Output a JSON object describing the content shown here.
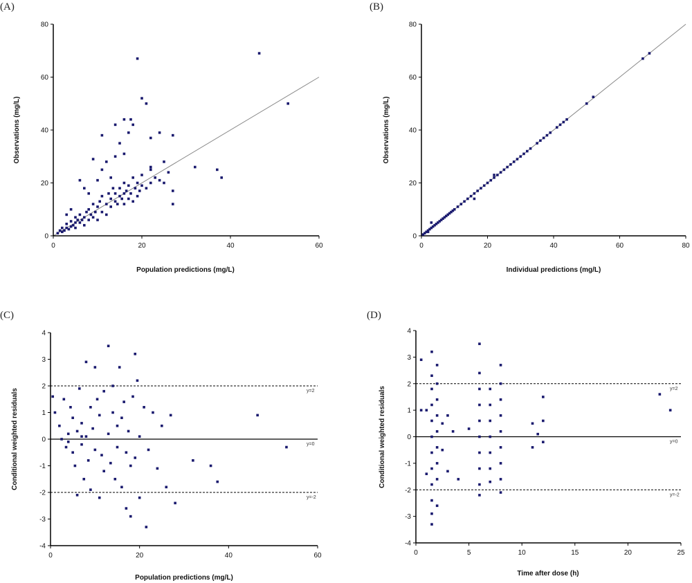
{
  "figure": {
    "point_color": "#1a1a6e",
    "line_color": "#888888",
    "axis_color": "#000000"
  },
  "chart_data": [
    {
      "id": "A",
      "panel_label": "(A)",
      "type": "scatter",
      "xlabel": "Population predictions (mg/L)",
      "ylabel": "Observations (mg/L)",
      "xlim": [
        0,
        60
      ],
      "ylim": [
        0,
        80
      ],
      "xticks": [
        0,
        20,
        40,
        60
      ],
      "yticks": [
        0,
        20,
        40,
        60,
        80
      ],
      "identity_line": true,
      "points": [
        [
          1,
          1
        ],
        [
          1.5,
          2
        ],
        [
          2,
          1.5
        ],
        [
          2,
          3
        ],
        [
          2.5,
          2
        ],
        [
          3,
          3
        ],
        [
          3,
          4.5
        ],
        [
          3.5,
          2.5
        ],
        [
          4,
          3.5
        ],
        [
          4,
          5.5
        ],
        [
          4.5,
          4
        ],
        [
          5,
          5
        ],
        [
          5,
          7
        ],
        [
          5,
          3
        ],
        [
          5.5,
          6
        ],
        [
          6,
          5
        ],
        [
          6,
          8
        ],
        [
          6.5,
          6
        ],
        [
          7,
          7
        ],
        [
          7,
          4
        ],
        [
          7.5,
          9
        ],
        [
          8,
          6
        ],
        [
          8,
          10
        ],
        [
          8.5,
          8
        ],
        [
          9,
          7
        ],
        [
          9,
          12
        ],
        [
          9.5,
          9
        ],
        [
          10,
          11
        ],
        [
          10,
          6
        ],
        [
          10.5,
          13
        ],
        [
          11,
          9
        ],
        [
          11,
          15
        ],
        [
          12,
          12
        ],
        [
          12,
          8
        ],
        [
          12.5,
          16
        ],
        [
          13,
          14
        ],
        [
          13,
          11
        ],
        [
          13.5,
          18
        ],
        [
          14,
          13
        ],
        [
          14,
          16
        ],
        [
          14.5,
          12
        ],
        [
          15,
          15
        ],
        [
          15,
          18
        ],
        [
          15.5,
          14
        ],
        [
          16,
          16
        ],
        [
          16,
          12
        ],
        [
          16,
          20
        ],
        [
          16.5,
          17
        ],
        [
          17,
          14
        ],
        [
          17,
          19
        ],
        [
          17.5,
          16
        ],
        [
          18,
          13
        ],
        [
          18,
          22
        ],
        [
          18.5,
          18
        ],
        [
          19,
          20
        ],
        [
          19,
          15
        ],
        [
          19.5,
          17
        ],
        [
          20,
          19
        ],
        [
          20,
          23
        ],
        [
          21,
          18
        ],
        [
          22,
          20
        ],
        [
          22,
          25
        ],
        [
          23,
          22
        ],
        [
          24,
          21
        ],
        [
          25,
          20
        ],
        [
          26,
          24
        ],
        [
          27,
          17
        ],
        [
          6,
          21
        ],
        [
          7,
          18
        ],
        [
          8,
          16
        ],
        [
          9,
          29
        ],
        [
          10,
          21
        ],
        [
          11,
          25
        ],
        [
          12,
          28
        ],
        [
          13,
          22
        ],
        [
          14,
          30
        ],
        [
          15,
          35
        ],
        [
          16,
          31
        ],
        [
          17,
          39
        ],
        [
          17.5,
          44
        ],
        [
          18,
          42
        ],
        [
          19,
          67
        ],
        [
          20,
          52
        ],
        [
          21,
          50
        ],
        [
          22,
          37
        ],
        [
          24,
          39
        ],
        [
          27,
          38
        ],
        [
          11,
          38
        ],
        [
          14,
          42
        ],
        [
          16,
          44
        ],
        [
          32,
          26
        ],
        [
          37,
          25
        ],
        [
          38,
          22
        ],
        [
          46.5,
          69
        ],
        [
          53,
          50
        ],
        [
          22,
          26
        ],
        [
          25,
          28
        ],
        [
          27,
          12
        ],
        [
          3,
          8
        ],
        [
          4,
          10
        ]
      ]
    },
    {
      "id": "B",
      "panel_label": "(B)",
      "type": "scatter",
      "xlabel": "Individual predictions (mg/L)",
      "ylabel": "Observations (mg/L)",
      "xlim": [
        0,
        80
      ],
      "ylim": [
        0,
        80
      ],
      "xticks": [
        0,
        20,
        40,
        60,
        80
      ],
      "yticks": [
        0,
        20,
        40,
        60,
        80
      ],
      "identity_line": true,
      "points": [
        [
          0.5,
          0.5
        ],
        [
          1,
          1
        ],
        [
          1.5,
          1.5
        ],
        [
          2,
          2
        ],
        [
          2.5,
          2.5
        ],
        [
          3,
          3
        ],
        [
          3.5,
          3.5
        ],
        [
          4,
          4
        ],
        [
          4.5,
          4.5
        ],
        [
          5,
          5
        ],
        [
          5.5,
          5.5
        ],
        [
          6,
          6
        ],
        [
          6.5,
          6.5
        ],
        [
          7,
          7
        ],
        [
          7.5,
          7.5
        ],
        [
          8,
          8
        ],
        [
          8.5,
          8.5
        ],
        [
          9,
          9
        ],
        [
          9.5,
          9.5
        ],
        [
          10,
          10
        ],
        [
          11,
          11
        ],
        [
          12,
          12
        ],
        [
          13,
          13
        ],
        [
          14,
          14
        ],
        [
          15,
          15
        ],
        [
          16,
          16
        ],
        [
          17,
          17
        ],
        [
          18,
          18
        ],
        [
          19,
          19
        ],
        [
          20,
          20
        ],
        [
          21,
          21
        ],
        [
          22,
          22
        ],
        [
          23,
          23
        ],
        [
          24,
          24
        ],
        [
          25,
          25
        ],
        [
          26,
          26
        ],
        [
          27,
          27
        ],
        [
          28,
          28
        ],
        [
          29,
          29
        ],
        [
          30,
          30
        ],
        [
          31,
          31
        ],
        [
          32,
          32
        ],
        [
          33,
          33
        ],
        [
          35,
          35
        ],
        [
          36,
          36
        ],
        [
          37,
          37
        ],
        [
          38,
          38
        ],
        [
          39,
          39
        ],
        [
          41,
          41
        ],
        [
          42,
          42
        ],
        [
          43,
          43
        ],
        [
          44,
          44
        ],
        [
          50,
          50
        ],
        [
          52,
          52.5
        ],
        [
          67,
          67
        ],
        [
          69,
          69
        ],
        [
          3,
          5
        ],
        [
          16,
          14
        ],
        [
          22,
          23
        ],
        [
          2,
          1.5
        ]
      ]
    },
    {
      "id": "C",
      "panel_label": "(C)",
      "type": "scatter",
      "xlabel": "Population predictions (mg/L)",
      "ylabel": "Conditional weighted residuals",
      "xlim": [
        0,
        60
      ],
      "ylim": [
        -4,
        4
      ],
      "xticks": [
        0,
        20,
        40,
        60
      ],
      "yticks": [
        -4,
        -3,
        -2,
        -1,
        0,
        1,
        2,
        3,
        4
      ],
      "reference_lines": [
        {
          "y": 2,
          "style": "dashed",
          "label": "y=2"
        },
        {
          "y": 0,
          "style": "solid",
          "label": "y=0"
        },
        {
          "y": -2,
          "style": "dashed",
          "label": "y=-2"
        }
      ],
      "points": [
        [
          0.5,
          1.6
        ],
        [
          1,
          1
        ],
        [
          2,
          0.5
        ],
        [
          3,
          1.5
        ],
        [
          3.5,
          -0.3
        ],
        [
          4,
          0.2
        ],
        [
          4.5,
          1.2
        ],
        [
          5,
          -0.5
        ],
        [
          5,
          0.8
        ],
        [
          5.5,
          -1
        ],
        [
          6,
          0.3
        ],
        [
          6,
          -2.1
        ],
        [
          6.5,
          1.9
        ],
        [
          7,
          -0.2
        ],
        [
          7,
          0.6
        ],
        [
          7.5,
          -1.5
        ],
        [
          8,
          2.9
        ],
        [
          8,
          0.1
        ],
        [
          8.5,
          -0.8
        ],
        [
          9,
          1.2
        ],
        [
          9,
          -1.9
        ],
        [
          9.5,
          0.4
        ],
        [
          10,
          2.7
        ],
        [
          10,
          -0.4
        ],
        [
          10.5,
          1.5
        ],
        [
          11,
          -2.2
        ],
        [
          11,
          0.9
        ],
        [
          11.5,
          -0.6
        ],
        [
          12,
          1.8
        ],
        [
          12,
          -1.2
        ],
        [
          13,
          3.5
        ],
        [
          13,
          0.2
        ],
        [
          13.5,
          -0.9
        ],
        [
          14,
          2
        ],
        [
          14,
          1
        ],
        [
          14.5,
          -1.5
        ],
        [
          15,
          0.5
        ],
        [
          15,
          -0.3
        ],
        [
          15.5,
          2.7
        ],
        [
          16,
          -1.8
        ],
        [
          16,
          0.8
        ],
        [
          16.5,
          1.4
        ],
        [
          17,
          -0.5
        ],
        [
          17,
          -2.6
        ],
        [
          17.5,
          0.3
        ],
        [
          18,
          -1
        ],
        [
          18,
          -2.9
        ],
        [
          18.5,
          1.6
        ],
        [
          19,
          3.2
        ],
        [
          19,
          -0.7
        ],
        [
          19.5,
          2.2
        ],
        [
          20,
          -2.2
        ],
        [
          20,
          0.1
        ],
        [
          21,
          1.2
        ],
        [
          21.5,
          -3.3
        ],
        [
          22,
          -0.4
        ],
        [
          23,
          1
        ],
        [
          24,
          -1.1
        ],
        [
          25,
          0.5
        ],
        [
          26,
          -1.8
        ],
        [
          27,
          0.9
        ],
        [
          28,
          -2.4
        ],
        [
          32,
          -0.8
        ],
        [
          36,
          -1
        ],
        [
          37.5,
          -1.6
        ],
        [
          46.5,
          0.9
        ],
        [
          53,
          -0.3
        ],
        [
          2.5,
          0
        ],
        [
          4,
          -0.1
        ],
        [
          7,
          0.1
        ]
      ]
    },
    {
      "id": "D",
      "panel_label": "(D)",
      "type": "scatter",
      "xlabel": "Time after dose (h)",
      "ylabel": "Conditional weighted residuals",
      "xlim": [
        0,
        25
      ],
      "ylim": [
        -4,
        4
      ],
      "xticks": [
        0,
        5,
        10,
        15,
        20,
        25
      ],
      "yticks": [
        -4,
        -3,
        -2,
        -1,
        0,
        1,
        2,
        3,
        4
      ],
      "reference_lines": [
        {
          "y": 2,
          "style": "dashed",
          "label": "y=2"
        },
        {
          "y": 0,
          "style": "solid",
          "label": "y=0"
        },
        {
          "y": -2,
          "style": "dashed",
          "label": "y=-2"
        }
      ],
      "points": [
        [
          0.5,
          2.9
        ],
        [
          0.5,
          1
        ],
        [
          1,
          1
        ],
        [
          1,
          -1.4
        ],
        [
          1.5,
          3.2
        ],
        [
          1.5,
          2.3
        ],
        [
          1.5,
          1.8
        ],
        [
          1.5,
          1.2
        ],
        [
          1.5,
          0.6
        ],
        [
          1.5,
          0
        ],
        [
          1.5,
          -0.6
        ],
        [
          1.5,
          -1.2
        ],
        [
          1.5,
          -1.8
        ],
        [
          1.5,
          -2.4
        ],
        [
          1.5,
          -2.9
        ],
        [
          1.5,
          -3.3
        ],
        [
          2,
          2.7
        ],
        [
          2,
          2
        ],
        [
          2,
          1.4
        ],
        [
          2,
          0.8
        ],
        [
          2,
          0.2
        ],
        [
          2,
          -0.4
        ],
        [
          2,
          -1
        ],
        [
          2,
          -1.6
        ],
        [
          2,
          -2.6
        ],
        [
          2.5,
          0.5
        ],
        [
          2.5,
          -0.5
        ],
        [
          3,
          0.8
        ],
        [
          3,
          -1.3
        ],
        [
          3.5,
          0.2
        ],
        [
          4,
          -1.6
        ],
        [
          5,
          0.3
        ],
        [
          6,
          3.5
        ],
        [
          6,
          2.4
        ],
        [
          6,
          1.8
        ],
        [
          6,
          1.2
        ],
        [
          6,
          0.6
        ],
        [
          6,
          0
        ],
        [
          6,
          -0.6
        ],
        [
          6,
          -1.2
        ],
        [
          6,
          -1.8
        ],
        [
          6,
          -2.2
        ],
        [
          7,
          1.8
        ],
        [
          7,
          1.2
        ],
        [
          7,
          0.6
        ],
        [
          7,
          0
        ],
        [
          7,
          -0.6
        ],
        [
          7,
          -1.2
        ],
        [
          7,
          -1.7
        ],
        [
          8,
          2.7
        ],
        [
          8,
          2
        ],
        [
          8,
          1.4
        ],
        [
          8,
          0.8
        ],
        [
          8,
          0.2
        ],
        [
          8,
          -0.4
        ],
        [
          8,
          -1
        ],
        [
          8,
          -1.6
        ],
        [
          8,
          -2.1
        ],
        [
          11,
          0.5
        ],
        [
          11,
          -0.4
        ],
        [
          11.5,
          0.1
        ],
        [
          12,
          1.5
        ],
        [
          12,
          0.6
        ],
        [
          12,
          -0.2
        ],
        [
          23,
          1.6
        ],
        [
          24,
          1
        ]
      ]
    }
  ]
}
